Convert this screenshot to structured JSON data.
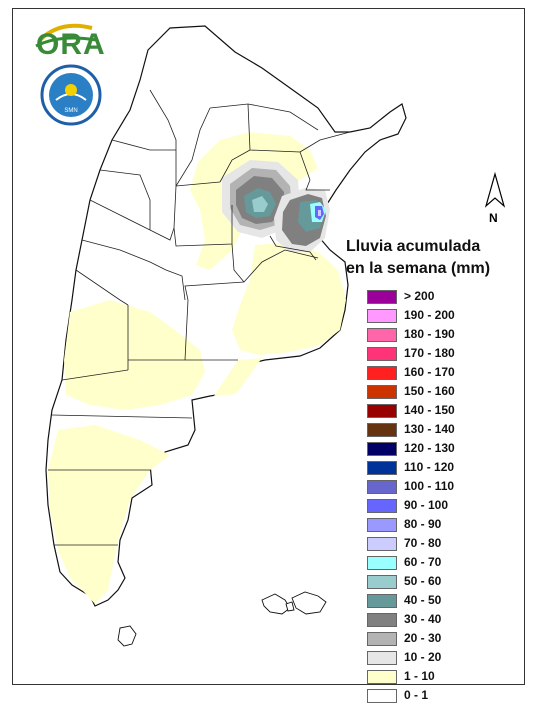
{
  "logo": {
    "text": "ORA",
    "icon": "ora-logo-icon"
  },
  "seal": {
    "icon": "smn-seal-icon",
    "text": "SERVICIO METEOROLOGICO NACIONAL · ARGENTINA",
    "center_text": "SMN"
  },
  "north_arrow": {
    "label": "N",
    "icon": "north-arrow-icon"
  },
  "legend": {
    "title_line1": "Lluvia acumulada",
    "title_line2": "en la semana (mm)",
    "items": [
      {
        "label": "> 200",
        "color": "#9b009b"
      },
      {
        "label": "190 - 200",
        "color": "#ff99ff"
      },
      {
        "label": "180 - 190",
        "color": "#ff66aa"
      },
      {
        "label": "170 - 180",
        "color": "#ff3377"
      },
      {
        "label": "160 - 170",
        "color": "#ff2020"
      },
      {
        "label": "150 - 160",
        "color": "#cc3300"
      },
      {
        "label": "140 - 150",
        "color": "#990000"
      },
      {
        "label": "130 - 140",
        "color": "#663311"
      },
      {
        "label": "120 - 130",
        "color": "#000066"
      },
      {
        "label": "110 - 120",
        "color": "#003399"
      },
      {
        "label": "100 - 110",
        "color": "#6666cc"
      },
      {
        "label": "90 - 100",
        "color": "#6666ff"
      },
      {
        "label": "80 - 90",
        "color": "#9999ff"
      },
      {
        "label": "70 - 80",
        "color": "#ccccff"
      },
      {
        "label": "60 - 70",
        "color": "#99ffff"
      },
      {
        "label": "50 - 60",
        "color": "#99cccc"
      },
      {
        "label": "40 - 50",
        "color": "#669999"
      },
      {
        "label": "30 - 40",
        "color": "#808080"
      },
      {
        "label": "20 - 30",
        "color": "#b3b3b3"
      },
      {
        "label": "10 - 20",
        "color": "#e6e6e6"
      },
      {
        "label": "1 - 10",
        "color": "#ffffcc"
      },
      {
        "label": "0 - 1",
        "color": "#ffffff"
      }
    ]
  }
}
